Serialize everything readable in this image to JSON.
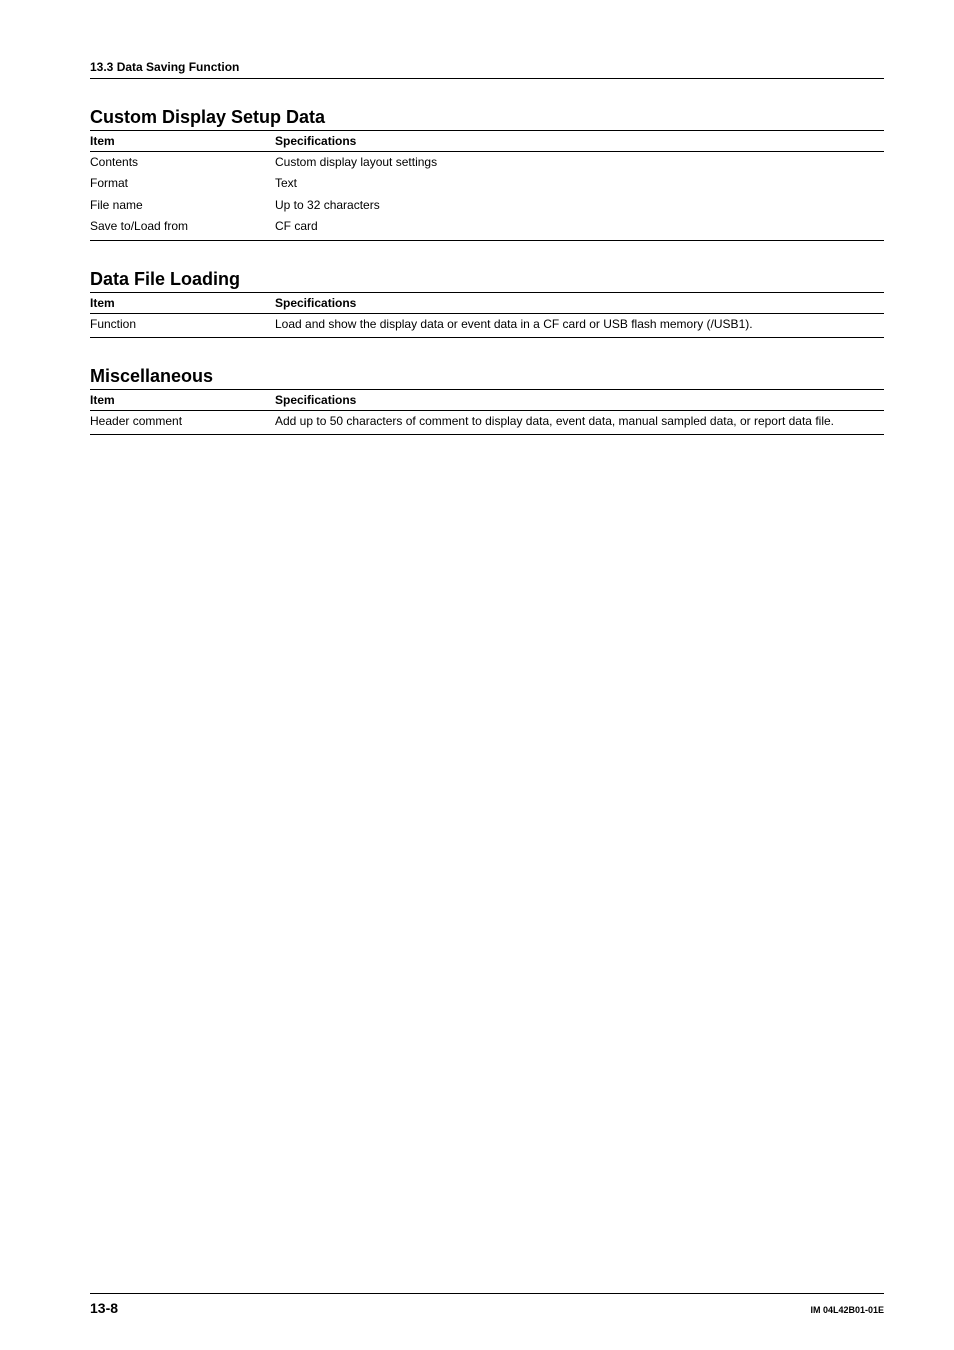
{
  "breadcrumb": "13.3  Data Saving Function",
  "section1": {
    "title": "Custom Display Setup Data",
    "header_item": "Item",
    "header_spec": "Specifications",
    "rows": [
      {
        "item": "Contents",
        "spec": "Custom display layout settings"
      },
      {
        "item": "Format",
        "spec": "Text"
      },
      {
        "item": "File name",
        "spec": "Up to 32 characters"
      },
      {
        "item": "Save to/Load from",
        "spec": "CF card"
      }
    ]
  },
  "section2": {
    "title": "Data File Loading",
    "header_item": "Item",
    "header_spec": "Specifications",
    "rows": [
      {
        "item": "Function",
        "spec": "Load and show the display data or event data in a CF card or USB flash memory (/USB1)."
      }
    ]
  },
  "section3": {
    "title": "Miscellaneous",
    "header_item": "Item",
    "header_spec": "Specifications",
    "rows": [
      {
        "item": "Header comment",
        "spec": "Add up to 50 characters of comment to display data, event data, manual sampled data, or report data file."
      }
    ]
  },
  "footer": {
    "page_number": "13-8",
    "doc_id": "IM 04L42B01-01E"
  }
}
